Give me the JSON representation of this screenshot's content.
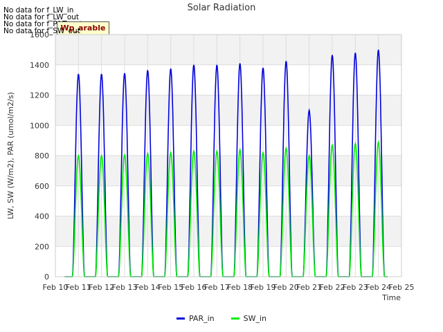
{
  "notes": [
    "No data for f_LW_in",
    "No data for f_LW_out",
    "No data for f_PAR_out",
    "No data for f_SW_out"
  ],
  "badge": "Wp_arable",
  "colors": {
    "PAR_in": "#0000dd",
    "SW_in": "#00ee00",
    "band": "#f2f2f2",
    "grid": "#dddddd"
  },
  "chart_data": {
    "type": "line",
    "title": "Solar Radiation",
    "xlabel": "Time",
    "ylabel": "LW, SW (W/m2), PAR (umol/m2/s)",
    "ylim": [
      0,
      1600
    ],
    "yticks": [
      0,
      200,
      400,
      600,
      800,
      1000,
      1200,
      1400,
      1600
    ],
    "xlim": [
      "Feb 10",
      "Feb 25"
    ],
    "xticks": [
      "Feb 10",
      "Feb 11",
      "Feb 12",
      "Feb 13",
      "Feb 14",
      "Feb 15",
      "Feb 16",
      "Feb 17",
      "Feb 18",
      "Feb 19",
      "Feb 20",
      "Feb 21",
      "Feb 22",
      "Feb 23",
      "Feb 24",
      "Feb 25"
    ],
    "grid": true,
    "legend_position": "bottom",
    "series": [
      {
        "name": "PAR_in",
        "daily_peak_dates": [
          "Feb 11",
          "Feb 12",
          "Feb 13",
          "Feb 14",
          "Feb 15",
          "Feb 16",
          "Feb 17",
          "Feb 18",
          "Feb 19",
          "Feb 20",
          "Feb 21",
          "Feb 22",
          "Feb 23",
          "Feb 24"
        ],
        "daily_peaks": [
          1340,
          1340,
          1345,
          1365,
          1375,
          1400,
          1400,
          1410,
          1380,
          1425,
          1100,
          1465,
          1480,
          1500
        ]
      },
      {
        "name": "SW_in",
        "daily_peak_dates": [
          "Feb 11",
          "Feb 12",
          "Feb 13",
          "Feb 14",
          "Feb 15",
          "Feb 16",
          "Feb 17",
          "Feb 18",
          "Feb 19",
          "Feb 20",
          "Feb 21",
          "Feb 22",
          "Feb 23",
          "Feb 24"
        ],
        "daily_peaks": [
          800,
          800,
          805,
          815,
          820,
          830,
          830,
          840,
          820,
          850,
          800,
          870,
          880,
          890
        ]
      }
    ]
  }
}
